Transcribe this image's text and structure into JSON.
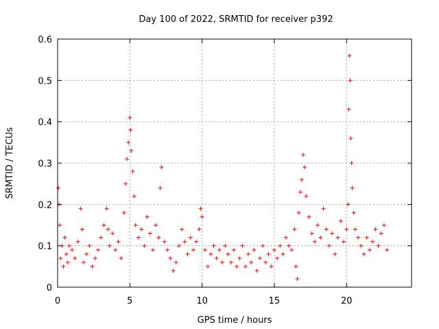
{
  "chart_data": {
    "type": "scatter",
    "title": "Day 100 of 2022, SRMTID for receiver p392",
    "xlabel": "GPS time / hours",
    "ylabel": "SRMTID / TECUs",
    "xlim": [
      0,
      24.5
    ],
    "ylim": [
      0,
      0.6
    ],
    "xticks": [
      0,
      5,
      10,
      15,
      20
    ],
    "xtick_labels": [
      "0",
      "5",
      "10",
      "15",
      "20"
    ],
    "yticks": [
      0,
      0.1,
      0.2,
      0.3,
      0.4,
      0.5,
      0.6
    ],
    "ytick_labels": [
      "0",
      "0.1",
      "0.2",
      "0.3",
      "0.4",
      "0.5",
      "0.6"
    ],
    "grid": true,
    "marker": "+",
    "color": "#ff0000",
    "series": [
      {
        "name": "SRMTID",
        "points": [
          [
            0.05,
            0.24
          ],
          [
            0.1,
            0.2
          ],
          [
            0.15,
            0.15
          ],
          [
            0.2,
            0.07
          ],
          [
            0.3,
            0.1
          ],
          [
            0.4,
            0.05
          ],
          [
            0.5,
            0.12
          ],
          [
            0.6,
            0.08
          ],
          [
            0.7,
            0.06
          ],
          [
            0.8,
            0.1
          ],
          [
            1.0,
            0.09
          ],
          [
            1.2,
            0.07
          ],
          [
            1.4,
            0.11
          ],
          [
            1.6,
            0.19
          ],
          [
            1.7,
            0.14
          ],
          [
            1.8,
            0.06
          ],
          [
            2.0,
            0.08
          ],
          [
            2.2,
            0.1
          ],
          [
            2.4,
            0.05
          ],
          [
            2.6,
            0.07
          ],
          [
            2.8,
            0.09
          ],
          [
            3.0,
            0.12
          ],
          [
            3.2,
            0.15
          ],
          [
            3.4,
            0.19
          ],
          [
            3.5,
            0.14
          ],
          [
            3.6,
            0.1
          ],
          [
            3.8,
            0.13
          ],
          [
            4.0,
            0.09
          ],
          [
            4.2,
            0.11
          ],
          [
            4.4,
            0.07
          ],
          [
            4.6,
            0.18
          ],
          [
            4.7,
            0.25
          ],
          [
            4.8,
            0.31
          ],
          [
            4.9,
            0.35
          ],
          [
            5.0,
            0.41
          ],
          [
            5.05,
            0.38
          ],
          [
            5.1,
            0.33
          ],
          [
            5.2,
            0.28
          ],
          [
            5.3,
            0.22
          ],
          [
            5.4,
            0.15
          ],
          [
            5.6,
            0.12
          ],
          [
            5.8,
            0.14
          ],
          [
            6.0,
            0.1
          ],
          [
            6.2,
            0.17
          ],
          [
            6.4,
            0.13
          ],
          [
            6.6,
            0.09
          ],
          [
            6.8,
            0.15
          ],
          [
            7.0,
            0.12
          ],
          [
            7.1,
            0.24
          ],
          [
            7.2,
            0.29
          ],
          [
            7.4,
            0.11
          ],
          [
            7.6,
            0.09
          ],
          [
            7.8,
            0.07
          ],
          [
            8.0,
            0.04
          ],
          [
            8.2,
            0.06
          ],
          [
            8.4,
            0.1
          ],
          [
            8.6,
            0.14
          ],
          [
            8.8,
            0.11
          ],
          [
            9.0,
            0.08
          ],
          [
            9.2,
            0.12
          ],
          [
            9.4,
            0.09
          ],
          [
            9.6,
            0.11
          ],
          [
            9.8,
            0.14
          ],
          [
            9.9,
            0.19
          ],
          [
            10.0,
            0.17
          ],
          [
            10.2,
            0.09
          ],
          [
            10.4,
            0.05
          ],
          [
            10.6,
            0.08
          ],
          [
            10.8,
            0.1
          ],
          [
            11.0,
            0.07
          ],
          [
            11.2,
            0.09
          ],
          [
            11.4,
            0.06
          ],
          [
            11.6,
            0.1
          ],
          [
            11.8,
            0.08
          ],
          [
            12.0,
            0.06
          ],
          [
            12.2,
            0.09
          ],
          [
            12.4,
            0.05
          ],
          [
            12.6,
            0.07
          ],
          [
            12.8,
            0.1
          ],
          [
            13.0,
            0.05
          ],
          [
            13.2,
            0.08
          ],
          [
            13.4,
            0.06
          ],
          [
            13.6,
            0.09
          ],
          [
            13.8,
            0.04
          ],
          [
            14.0,
            0.07
          ],
          [
            14.2,
            0.1
          ],
          [
            14.4,
            0.06
          ],
          [
            14.6,
            0.08
          ],
          [
            14.8,
            0.05
          ],
          [
            15.0,
            0.09
          ],
          [
            15.2,
            0.07
          ],
          [
            15.4,
            0.1
          ],
          [
            15.6,
            0.08
          ],
          [
            15.8,
            0.12
          ],
          [
            16.0,
            0.1
          ],
          [
            16.2,
            0.09
          ],
          [
            16.4,
            0.14
          ],
          [
            16.5,
            0.05
          ],
          [
            16.6,
            0.02
          ],
          [
            16.7,
            0.18
          ],
          [
            16.8,
            0.23
          ],
          [
            16.9,
            0.26
          ],
          [
            17.0,
            0.32
          ],
          [
            17.1,
            0.29
          ],
          [
            17.2,
            0.22
          ],
          [
            17.4,
            0.17
          ],
          [
            17.6,
            0.13
          ],
          [
            17.8,
            0.11
          ],
          [
            18.0,
            0.15
          ],
          [
            18.2,
            0.12
          ],
          [
            18.4,
            0.19
          ],
          [
            18.6,
            0.14
          ],
          [
            18.8,
            0.1
          ],
          [
            19.0,
            0.13
          ],
          [
            19.2,
            0.08
          ],
          [
            19.4,
            0.12
          ],
          [
            19.6,
            0.16
          ],
          [
            19.8,
            0.11
          ],
          [
            20.0,
            0.14
          ],
          [
            20.1,
            0.2
          ],
          [
            20.15,
            0.43
          ],
          [
            20.2,
            0.56
          ],
          [
            20.25,
            0.5
          ],
          [
            20.3,
            0.36
          ],
          [
            20.35,
            0.3
          ],
          [
            20.4,
            0.24
          ],
          [
            20.5,
            0.18
          ],
          [
            20.6,
            0.14
          ],
          [
            20.8,
            0.12
          ],
          [
            21.0,
            0.1
          ],
          [
            21.2,
            0.08
          ],
          [
            21.4,
            0.12
          ],
          [
            21.6,
            0.09
          ],
          [
            21.8,
            0.11
          ],
          [
            22.0,
            0.14
          ],
          [
            22.2,
            0.1
          ],
          [
            22.4,
            0.13
          ],
          [
            22.6,
            0.15
          ],
          [
            22.8,
            0.09
          ]
        ]
      }
    ]
  }
}
